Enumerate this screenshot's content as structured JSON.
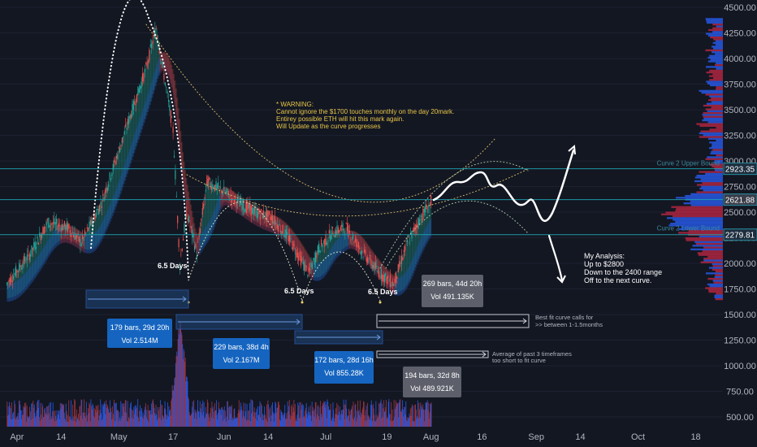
{
  "chart_data": {
    "type": "candlestick",
    "title": "",
    "ylim": [
      400,
      4550
    ],
    "y_ticks": [
      "4500.00",
      "4250.00",
      "4000.00",
      "3750.00",
      "3500.00",
      "3250.00",
      "3000.00",
      "2750.00",
      "2500.00",
      "2250.00",
      "2000.00",
      "1750.00",
      "1500.00",
      "1250.00",
      "1000.00",
      "750.00",
      "500.00"
    ],
    "x_ticks": [
      {
        "label": "Apr",
        "date": "2021-04-01"
      },
      {
        "label": "14",
        "date": "2021-04-14"
      },
      {
        "label": "May",
        "date": "2021-05-01"
      },
      {
        "label": "17",
        "date": "2021-05-17"
      },
      {
        "label": "Jun",
        "date": "2021-06-01"
      },
      {
        "label": "14",
        "date": "2021-06-14"
      },
      {
        "label": "Jul",
        "date": "2021-07-01"
      },
      {
        "label": "19",
        "date": "2021-07-19"
      },
      {
        "label": "Aug",
        "date": "2021-08-01"
      },
      {
        "label": "16",
        "date": "2021-08-16"
      },
      {
        "label": "Sep",
        "date": "2021-09-01"
      },
      {
        "label": "14",
        "date": "2021-09-14"
      },
      {
        "label": "Oct",
        "date": "2021-10-01"
      },
      {
        "label": "18",
        "date": "2021-10-18"
      }
    ],
    "price_path": [
      {
        "date": "2021-03-29",
        "price": 1800
      },
      {
        "date": "2021-04-05",
        "price": 2100
      },
      {
        "date": "2021-04-10",
        "price": 2400
      },
      {
        "date": "2021-04-16",
        "price": 2350
      },
      {
        "date": "2021-04-20",
        "price": 2200
      },
      {
        "date": "2021-04-26",
        "price": 2600
      },
      {
        "date": "2021-05-01",
        "price": 3100
      },
      {
        "date": "2021-05-05",
        "price": 3500
      },
      {
        "date": "2021-05-09",
        "price": 3900
      },
      {
        "date": "2021-05-12",
        "price": 4300
      },
      {
        "date": "2021-05-15",
        "price": 3700
      },
      {
        "date": "2021-05-17",
        "price": 3300
      },
      {
        "date": "2021-05-19",
        "price": 2000
      },
      {
        "date": "2021-05-21",
        "price": 2500
      },
      {
        "date": "2021-05-24",
        "price": 2100
      },
      {
        "date": "2021-05-27",
        "price": 2800
      },
      {
        "date": "2021-06-01",
        "price": 2700
      },
      {
        "date": "2021-06-05",
        "price": 2600
      },
      {
        "date": "2021-06-10",
        "price": 2500
      },
      {
        "date": "2021-06-15",
        "price": 2450
      },
      {
        "date": "2021-06-20",
        "price": 2250
      },
      {
        "date": "2021-06-26",
        "price": 1900
      },
      {
        "date": "2021-06-29",
        "price": 2150
      },
      {
        "date": "2021-07-03",
        "price": 2300
      },
      {
        "date": "2021-07-07",
        "price": 2350
      },
      {
        "date": "2021-07-12",
        "price": 2100
      },
      {
        "date": "2021-07-17",
        "price": 1900
      },
      {
        "date": "2021-07-21",
        "price": 1800
      },
      {
        "date": "2021-07-25",
        "price": 2200
      },
      {
        "date": "2021-07-29",
        "price": 2450
      },
      {
        "date": "2021-08-01",
        "price": 2600
      }
    ],
    "horizontal_levels": [
      {
        "label": "2923.35",
        "value": 2923.35
      },
      {
        "label": "2621.88",
        "value": 2621.88
      },
      {
        "label": "2279.81",
        "value": 2279.81
      }
    ],
    "bound_labels": {
      "upper": "Curve 2 Upper Bound",
      "lower": "Curve 2 Lower Bound"
    }
  },
  "annotations": {
    "warning": [
      "* WARNING:",
      "Cannot ignore the $1700 touches monthly on the day 20mark.",
      "Entirey possible ETH will hit this mark again.",
      "Will Update as the curve progresses"
    ],
    "analysis": [
      "My Analysis:",
      "Up to $2800",
      "Down to the 2400 range",
      "Off to the next curve."
    ],
    "cycle_labels": [
      "6.5 Days",
      "6.5 Days",
      "6.5 Days"
    ],
    "best_fit": [
      "Best fit curve calls for",
      ">> between 1-1.5months"
    ],
    "average": [
      "Average of past 3 timeframes",
      "too short to fit curve"
    ]
  },
  "range_boxes": [
    {
      "bars": "179 bars, 29d 20h",
      "vol": "Vol 2.514M"
    },
    {
      "bars": "229 bars, 38d 4h",
      "vol": "Vol 2.167M"
    },
    {
      "bars": "172 bars, 28d 16h",
      "vol": "Vol 855.28K"
    },
    {
      "bars": "269 bars, 44d 20h",
      "vol": "Vol 491.135K"
    },
    {
      "bars": "194 bars, 32d 8h",
      "vol": "Vol 489.921K"
    }
  ],
  "colors": {
    "background": "#131722",
    "up": "#26a69a",
    "down": "#ef5350",
    "level_line": "#1fa3b3",
    "warning_text": "#e8c547",
    "box_blue": "#1565c0",
    "box_gray": "#5d606b"
  }
}
